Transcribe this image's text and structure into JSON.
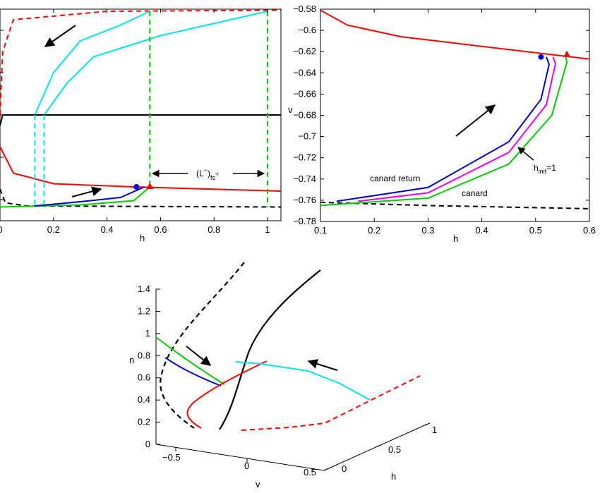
{
  "chart_data": [
    {
      "type": "line",
      "panel": "top-left",
      "xlabel": "h",
      "ylabel": "",
      "xlim": [
        0,
        1.05
      ],
      "ylim": [
        -0.78,
        -0.58
      ],
      "xtick_labels": [
        "0",
        "0.2",
        "0.4",
        "0.6",
        "0.8",
        "1"
      ],
      "annotations": {
        "label_main": "(L",
        "label_sup": "−",
        "label_close": ")",
        "label_sub": "fs",
        "label_sub_sup": "+"
      },
      "series": [
        {
          "name": "red dashed branch",
          "color": "#ff0000",
          "style": "dashed",
          "points": [
            [
              0,
              -0.68
            ],
            [
              0.01,
              -0.62
            ],
            [
              0.05,
              -0.59
            ],
            [
              0.4,
              -0.582
            ],
            [
              1.05,
              -0.581
            ]
          ]
        },
        {
          "name": "cyan trajectory outer",
          "color": "#00e5e5",
          "style": "solid",
          "points": [
            [
              0.13,
              -0.68
            ],
            [
              0.2,
              -0.64
            ],
            [
              0.3,
              -0.61
            ],
            [
              0.45,
              -0.595
            ],
            [
              0.56,
              -0.582
            ]
          ]
        },
        {
          "name": "cyan trajectory inner",
          "color": "#00e5e5",
          "style": "solid",
          "points": [
            [
              0.165,
              -0.68
            ],
            [
              0.25,
              -0.65
            ],
            [
              0.35,
              -0.625
            ],
            [
              0.6,
              -0.605
            ],
            [
              1.0,
              -0.582
            ]
          ]
        },
        {
          "name": "black middle branch",
          "color": "#000000",
          "style": "solid",
          "points": [
            [
              0,
              -0.69
            ],
            [
              0.01,
              -0.68
            ],
            [
              0.2,
              -0.68
            ],
            [
              1.05,
              -0.68
            ]
          ]
        },
        {
          "name": "red nullcline",
          "color": "#ff0000",
          "style": "solid",
          "points": [
            [
              0,
              -0.71
            ],
            [
              0.05,
              -0.735
            ],
            [
              0.2,
              -0.745
            ],
            [
              0.5,
              -0.748
            ],
            [
              1.05,
              -0.752
            ]
          ]
        },
        {
          "name": "black dashed branch",
          "color": "#000000",
          "style": "dashed",
          "points": [
            [
              0,
              -0.75
            ],
            [
              0.02,
              -0.763
            ],
            [
              0.1,
              -0.766
            ],
            [
              1.05,
              -0.767
            ]
          ]
        },
        {
          "name": "green canard",
          "color": "#00cc00",
          "style": "solid",
          "points": [
            [
              0,
              -0.767
            ],
            [
              0.3,
              -0.765
            ],
            [
              0.5,
              -0.761
            ],
            [
              0.56,
              -0.748
            ]
          ]
        },
        {
          "name": "blue canard return",
          "color": "#0000cc",
          "style": "solid",
          "points": [
            [
              0.13,
              -0.766
            ],
            [
              0.3,
              -0.762
            ],
            [
              0.45,
              -0.758
            ],
            [
              0.54,
              -0.748
            ]
          ]
        },
        {
          "name": "cyan dashed h=0.13",
          "color": "#00e5e5",
          "style": "dashed",
          "points": [
            [
              0.13,
              -0.68
            ],
            [
              0.13,
              -0.767
            ]
          ]
        },
        {
          "name": "cyan dashed h=0.165",
          "color": "#00e5e5",
          "style": "dashed",
          "points": [
            [
              0.165,
              -0.68
            ],
            [
              0.165,
              -0.767
            ]
          ]
        },
        {
          "name": "green dashed h=0.56",
          "color": "#00cc00",
          "style": "dashed",
          "points": [
            [
              0.56,
              -0.582
            ],
            [
              0.56,
              -0.748
            ]
          ]
        },
        {
          "name": "green dashed h=1",
          "color": "#00cc00",
          "style": "dashed",
          "points": [
            [
              1.0,
              -0.582
            ],
            [
              1.0,
              -0.767
            ]
          ]
        }
      ],
      "markers": [
        {
          "name": "blue dot",
          "shape": "circle",
          "color": "#0000cc",
          "h": 0.51,
          "v": -0.748
        },
        {
          "name": "red triangle",
          "shape": "triangle",
          "color": "#ff0000",
          "h": 0.56,
          "v": -0.748
        }
      ]
    },
    {
      "type": "line",
      "panel": "top-right",
      "xlabel": "h",
      "ylabel": "v",
      "xlim": [
        0.1,
        0.6
      ],
      "ylim": [
        -0.78,
        -0.58
      ],
      "xtick_labels": [
        "0.1",
        "0.2",
        "0.3",
        "0.4",
        "0.5",
        "0.6"
      ],
      "ytick_labels": [
        "-0.58",
        "-0.6",
        "-0.62",
        "-0.64",
        "-0.66",
        "-0.68",
        "-0.7",
        "-0.72",
        "-0.74",
        "-0.76",
        "-0.78"
      ],
      "annotations": {
        "canard_return": "canard return",
        "canard": "canard",
        "hinit_main": "h",
        "hinit_sub": "init",
        "hinit_eq": "=1"
      },
      "series": [
        {
          "name": "red nullcline",
          "color": "#ff0000",
          "style": "solid",
          "points": [
            [
              0.1,
              -0.581
            ],
            [
              0.15,
              -0.595
            ],
            [
              0.25,
              -0.606
            ],
            [
              0.4,
              -0.615
            ],
            [
              0.6,
              -0.627
            ]
          ]
        },
        {
          "name": "black dashed branch",
          "color": "#000000",
          "style": "dashed",
          "points": [
            [
              0.1,
              -0.762
            ],
            [
              0.3,
              -0.765
            ],
            [
              0.6,
              -0.768
            ]
          ]
        },
        {
          "name": "green canard",
          "color": "#00cc00",
          "style": "solid",
          "points": [
            [
              0.1,
              -0.765
            ],
            [
              0.3,
              -0.758
            ],
            [
              0.45,
              -0.726
            ],
            [
              0.53,
              -0.68
            ],
            [
              0.558,
              -0.63
            ],
            [
              0.555,
              -0.622
            ]
          ]
        },
        {
          "name": "magenta trajectory",
          "color": "#ee00ee",
          "style": "solid",
          "points": [
            [
              0.17,
              -0.761
            ],
            [
              0.3,
              -0.753
            ],
            [
              0.45,
              -0.715
            ],
            [
              0.52,
              -0.67
            ],
            [
              0.537,
              -0.631
            ],
            [
              0.532,
              -0.625
            ]
          ]
        },
        {
          "name": "blue canard return",
          "color": "#0000cc",
          "style": "solid",
          "points": [
            [
              0.13,
              -0.761
            ],
            [
              0.3,
              -0.748
            ],
            [
              0.45,
              -0.705
            ],
            [
              0.51,
              -0.665
            ],
            [
              0.525,
              -0.632
            ],
            [
              0.52,
              -0.625
            ]
          ]
        }
      ],
      "markers": [
        {
          "name": "blue dot",
          "shape": "circle",
          "color": "#0000cc",
          "h": 0.51,
          "v": -0.625
        },
        {
          "name": "red triangle",
          "shape": "triangle",
          "color": "#ff0000",
          "h": 0.558,
          "v": -0.623
        }
      ]
    },
    {
      "type": "line3d",
      "panel": "bottom",
      "xlabel": "v",
      "ylabel": "h",
      "zlabel": "n",
      "zlim": [
        0,
        1.4
      ],
      "z_tick_labels": [
        "0",
        "0.2",
        "0.4",
        "0.6",
        "0.8",
        "1",
        "1.2",
        "1.4"
      ],
      "v_tick_labels": [
        "−0.5",
        "0",
        "0.5"
      ],
      "h_tick_labels": [
        "0",
        "0.5",
        "1"
      ]
    }
  ]
}
